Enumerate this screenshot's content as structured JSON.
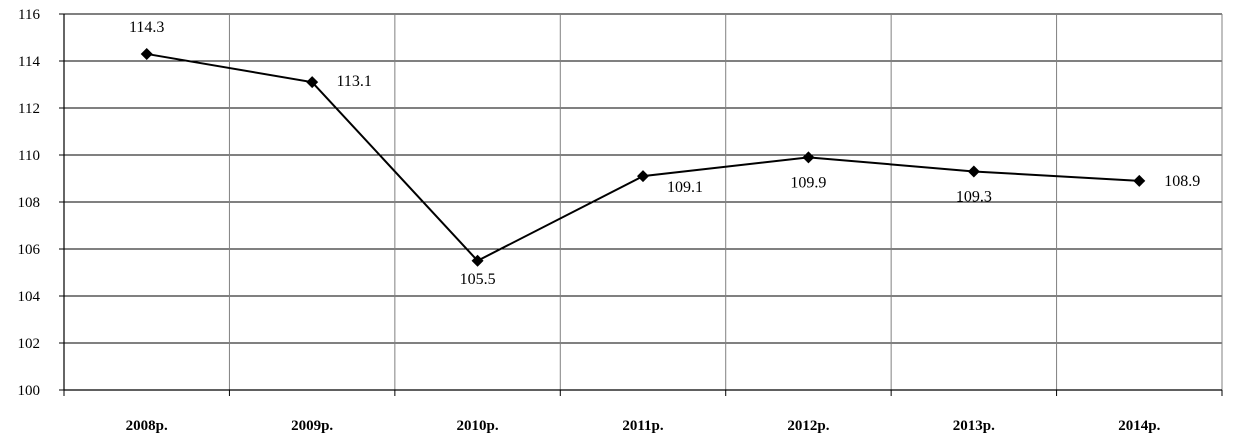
{
  "chart_data": {
    "type": "line",
    "categories": [
      "2008р.",
      "2009р.",
      "2010р.",
      "2011р.",
      "2012р.",
      "2013р.",
      "2014р."
    ],
    "series": [
      {
        "values": [
          114.3,
          113.1,
          105.5,
          109.1,
          109.9,
          109.3,
          108.9
        ]
      }
    ],
    "data_labels": [
      "114.3",
      "113.1",
      "105.5",
      "109.1",
      "109.9",
      "109.3",
      "108.9"
    ],
    "y_ticks": [
      "100",
      "102",
      "104",
      "106",
      "108",
      "110",
      "112",
      "114",
      "116"
    ],
    "ylim": [
      100,
      116
    ],
    "grid": true,
    "line_color": "#000000",
    "grid_color": "#000000"
  }
}
